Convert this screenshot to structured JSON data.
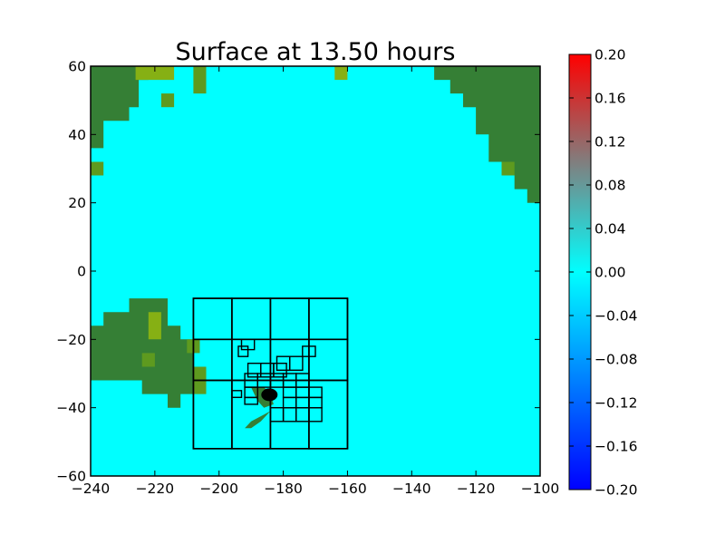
{
  "chart_data": {
    "type": "heatmap",
    "title": "Surface at 13.50 hours",
    "xlabel": "",
    "ylabel": "",
    "xlim": [
      -240,
      -100
    ],
    "ylim": [
      -60,
      60
    ],
    "x_ticks": [
      -240,
      -220,
      -200,
      -180,
      -160,
      -140,
      -120,
      -100
    ],
    "y_ticks": [
      -60,
      -40,
      -20,
      0,
      20,
      40,
      60
    ],
    "x_tick_labels": [
      "−240",
      "−220",
      "−200",
      "−180",
      "−160",
      "−140",
      "−120",
      "−100"
    ],
    "y_tick_labels": [
      "−60",
      "−40",
      "−20",
      "0",
      "20",
      "40",
      "60"
    ],
    "grid": false,
    "background_value": 0.0,
    "colorbar": {
      "range": [
        -0.2,
        0.2
      ],
      "ticks": [
        0.2,
        0.16,
        0.12,
        0.08,
        0.04,
        0.0,
        -0.04,
        -0.08,
        -0.12,
        -0.16,
        -0.2
      ],
      "tick_labels": [
        "0.20",
        "0.16",
        "0.12",
        "0.08",
        "0.04",
        "0.00",
        "−0.04",
        "−0.08",
        "−0.12",
        "−0.16",
        "−0.20"
      ],
      "colors": [
        "#0000ff",
        "#00ffff",
        "#ff0000"
      ]
    },
    "colors": {
      "water": "#00ffff",
      "land": "#357f35",
      "land_light": "#5e9a1f",
      "land_lime": "#86b014",
      "grid_lines": "#000000"
    },
    "land_regions": [
      {
        "name": "asia-northwest",
        "points": [
          [
            -240,
            60
          ],
          [
            -222,
            60
          ],
          [
            -222,
            56
          ],
          [
            -225,
            56
          ],
          [
            -225,
            48
          ],
          [
            -228,
            48
          ],
          [
            -228,
            44
          ],
          [
            -236,
            44
          ],
          [
            -236,
            36
          ],
          [
            -240,
            36
          ]
        ]
      },
      {
        "name": "america-northeast",
        "points": [
          [
            -133,
            60
          ],
          [
            -100,
            60
          ],
          [
            -100,
            20
          ],
          [
            -104,
            20
          ],
          [
            -104,
            24
          ],
          [
            -108,
            24
          ],
          [
            -108,
            28
          ],
          [
            -112,
            28
          ],
          [
            -112,
            32
          ],
          [
            -116,
            32
          ],
          [
            -116,
            40
          ],
          [
            -120,
            40
          ],
          [
            -120,
            48
          ],
          [
            -124,
            48
          ],
          [
            -124,
            52
          ],
          [
            -128,
            52
          ],
          [
            -128,
            56
          ],
          [
            -133,
            56
          ]
        ]
      },
      {
        "name": "australia",
        "points": [
          [
            -240,
            -16
          ],
          [
            -236,
            -16
          ],
          [
            -236,
            -12
          ],
          [
            -228,
            -12
          ],
          [
            -228,
            -8
          ],
          [
            -216,
            -8
          ],
          [
            -216,
            -16
          ],
          [
            -212,
            -16
          ],
          [
            -212,
            -20
          ],
          [
            -208,
            -20
          ],
          [
            -208,
            -36
          ],
          [
            -212,
            -36
          ],
          [
            -212,
            -40
          ],
          [
            -216,
            -40
          ],
          [
            -216,
            -36
          ],
          [
            -224,
            -36
          ],
          [
            -224,
            -32
          ],
          [
            -240,
            -32
          ]
        ]
      },
      {
        "name": "land-patch-1",
        "points": [
          [
            -226,
            60
          ],
          [
            -214,
            60
          ],
          [
            -214,
            56
          ],
          [
            -226,
            56
          ]
        ]
      },
      {
        "name": "land-patch-2",
        "points": [
          [
            -218,
            52
          ],
          [
            -214,
            52
          ],
          [
            -214,
            48
          ],
          [
            -218,
            48
          ]
        ]
      },
      {
        "name": "land-patch-3",
        "points": [
          [
            -208,
            60
          ],
          [
            -204,
            60
          ],
          [
            -204,
            52
          ],
          [
            -208,
            52
          ]
        ]
      },
      {
        "name": "land-patch-4",
        "points": [
          [
            -164,
            60
          ],
          [
            -160,
            60
          ],
          [
            -160,
            56
          ],
          [
            -164,
            56
          ]
        ]
      },
      {
        "name": "land-patch-5",
        "points": [
          [
            -240,
            32
          ],
          [
            -236,
            32
          ],
          [
            -236,
            28
          ],
          [
            -240,
            28
          ]
        ]
      },
      {
        "name": "land-patch-6",
        "points": [
          [
            -112,
            32
          ],
          [
            -108,
            32
          ],
          [
            -108,
            28
          ],
          [
            -112,
            28
          ]
        ]
      },
      {
        "name": "land-patch-7",
        "points": [
          [
            -222,
            -12
          ],
          [
            -218,
            -12
          ],
          [
            -218,
            -20
          ],
          [
            -222,
            -20
          ]
        ]
      },
      {
        "name": "land-patch-8",
        "points": [
          [
            -224,
            -24
          ],
          [
            -220,
            -24
          ],
          [
            -220,
            -28
          ],
          [
            -224,
            -28
          ]
        ]
      },
      {
        "name": "land-patch-9",
        "points": [
          [
            -210,
            -20
          ],
          [
            -206,
            -20
          ],
          [
            -206,
            -24
          ],
          [
            -210,
            -24
          ]
        ]
      },
      {
        "name": "land-patch-10",
        "points": [
          [
            -208,
            -28
          ],
          [
            -204,
            -28
          ],
          [
            -204,
            -36
          ],
          [
            -208,
            -36
          ]
        ]
      },
      {
        "name": "new-zealand-north",
        "points": [
          [
            -190,
            -34
          ],
          [
            -186,
            -34
          ],
          [
            -184,
            -36
          ],
          [
            -183,
            -39
          ],
          [
            -186,
            -40
          ],
          [
            -188,
            -38
          ]
        ]
      },
      {
        "name": "new-zealand-south",
        "points": [
          [
            -184,
            -41
          ],
          [
            -187,
            -44
          ],
          [
            -190,
            -46
          ],
          [
            -192,
            -46
          ],
          [
            -190,
            -44
          ],
          [
            -186,
            -42
          ]
        ]
      }
    ],
    "refinement_patches": [
      {
        "level": 1,
        "x": [
          -208,
          -160
        ],
        "y": [
          -52,
          -8
        ]
      },
      {
        "level": 2,
        "x": [
          -208,
          -196
        ],
        "y": [
          -20,
          -8
        ]
      },
      {
        "level": 2,
        "x": [
          -196,
          -184
        ],
        "y": [
          -20,
          -8
        ]
      },
      {
        "level": 2,
        "x": [
          -184,
          -172
        ],
        "y": [
          -20,
          -8
        ]
      },
      {
        "level": 2,
        "x": [
          -172,
          -160
        ],
        "y": [
          -20,
          -8
        ]
      },
      {
        "level": 2,
        "x": [
          -208,
          -196
        ],
        "y": [
          -32,
          -20
        ]
      },
      {
        "level": 2,
        "x": [
          -196,
          -184
        ],
        "y": [
          -32,
          -20
        ]
      },
      {
        "level": 2,
        "x": [
          -184,
          -172
        ],
        "y": [
          -32,
          -20
        ]
      },
      {
        "level": 2,
        "x": [
          -172,
          -160
        ],
        "y": [
          -32,
          -20
        ]
      },
      {
        "level": 2,
        "x": [
          -208,
          -196
        ],
        "y": [
          -52,
          -32
        ]
      },
      {
        "level": 2,
        "x": [
          -196,
          -184
        ],
        "y": [
          -52,
          -32
        ]
      },
      {
        "level": 2,
        "x": [
          -184,
          -172
        ],
        "y": [
          -52,
          -32
        ]
      },
      {
        "level": 2,
        "x": [
          -172,
          -160
        ],
        "y": [
          -52,
          -32
        ]
      },
      {
        "level": 3,
        "x": [
          -193,
          -189
        ],
        "y": [
          -23,
          -20
        ]
      },
      {
        "level": 3,
        "x": [
          -194,
          -191
        ],
        "y": [
          -25,
          -22
        ]
      },
      {
        "level": 3,
        "x": [
          -174,
          -170
        ],
        "y": [
          -25,
          -22
        ]
      },
      {
        "level": 3,
        "x": [
          -182,
          -178
        ],
        "y": [
          -29,
          -25
        ]
      },
      {
        "level": 3,
        "x": [
          -178,
          -174
        ],
        "y": [
          -29,
          -25
        ]
      },
      {
        "level": 3,
        "x": [
          -191,
          -187
        ],
        "y": [
          -31,
          -27
        ]
      },
      {
        "level": 3,
        "x": [
          -187,
          -183
        ],
        "y": [
          -31,
          -27
        ]
      },
      {
        "level": 3,
        "x": [
          -183,
          -179
        ],
        "y": [
          -31,
          -27
        ]
      },
      {
        "level": 3,
        "x": [
          -192,
          -188
        ],
        "y": [
          -34,
          -30
        ]
      },
      {
        "level": 3,
        "x": [
          -188,
          -184
        ],
        "y": [
          -34,
          -30
        ]
      },
      {
        "level": 3,
        "x": [
          -184,
          -180
        ],
        "y": [
          -34,
          -30
        ]
      },
      {
        "level": 3,
        "x": [
          -180,
          -176
        ],
        "y": [
          -34,
          -30
        ]
      },
      {
        "level": 3,
        "x": [
          -176,
          -172
        ],
        "y": [
          -34,
          -30
        ]
      },
      {
        "level": 3,
        "x": [
          -192,
          -188
        ],
        "y": [
          -37,
          -34
        ]
      },
      {
        "level": 3,
        "x": [
          -196,
          -193
        ],
        "y": [
          -37,
          -35
        ]
      },
      {
        "level": 3,
        "x": [
          -180,
          -176
        ],
        "y": [
          -37,
          -34
        ]
      },
      {
        "level": 3,
        "x": [
          -176,
          -172
        ],
        "y": [
          -37,
          -34
        ]
      },
      {
        "level": 3,
        "x": [
          -172,
          -168
        ],
        "y": [
          -37,
          -34
        ]
      },
      {
        "level": 3,
        "x": [
          -192,
          -188
        ],
        "y": [
          -39,
          -37
        ]
      },
      {
        "level": 3,
        "x": [
          -180,
          -176
        ],
        "y": [
          -40,
          -37
        ]
      },
      {
        "level": 3,
        "x": [
          -176,
          -172
        ],
        "y": [
          -40,
          -37
        ]
      },
      {
        "level": 3,
        "x": [
          -172,
          -168
        ],
        "y": [
          -40,
          -37
        ]
      },
      {
        "level": 3,
        "x": [
          -184,
          -180
        ],
        "y": [
          -44,
          -40
        ]
      },
      {
        "level": 3,
        "x": [
          -180,
          -176
        ],
        "y": [
          -44,
          -40
        ]
      },
      {
        "level": 3,
        "x": [
          -176,
          -172
        ],
        "y": [
          -44,
          -40
        ]
      },
      {
        "level": 3,
        "x": [
          -172,
          -168
        ],
        "y": [
          -44,
          -40
        ]
      }
    ]
  }
}
